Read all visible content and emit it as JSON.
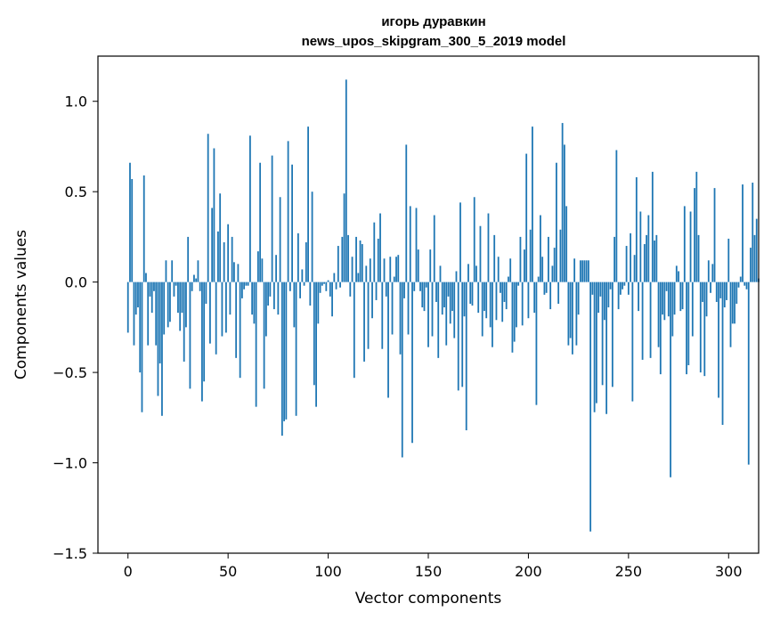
{
  "chart_data": {
    "type": "bar",
    "title": "игорь дуравкин",
    "subtitle": "news_upos_skipgram_300_5_2019 model",
    "xlabel": "Vector components",
    "ylabel": "Components values",
    "xlim": [
      -15,
      315
    ],
    "ylim": [
      -1.5,
      1.25
    ],
    "xticks": [
      0,
      50,
      100,
      150,
      200,
      250,
      300
    ],
    "xtick_labels": [
      "0",
      "50",
      "100",
      "150",
      "200",
      "250",
      "300"
    ],
    "yticks": [
      -1.5,
      -1.0,
      -0.5,
      0.0,
      0.5,
      1.0
    ],
    "ytick_labels": [
      "−1.5",
      "−1.0",
      "−0.5",
      "0.0",
      "0.5",
      "1.0"
    ],
    "bar_color": "#1f77b4",
    "grid": false,
    "values": [
      -0.28,
      0.66,
      0.57,
      -0.35,
      -0.18,
      -0.14,
      -0.5,
      -0.72,
      0.59,
      0.05,
      -0.35,
      -0.08,
      -0.17,
      -0.05,
      -0.35,
      -0.63,
      -0.45,
      -0.74,
      -0.29,
      0.12,
      -0.25,
      -0.22,
      0.12,
      -0.08,
      -0.02,
      -0.17,
      -0.27,
      -0.17,
      -0.44,
      -0.25,
      0.25,
      -0.59,
      -0.05,
      0.04,
      0.02,
      0.12,
      -0.05,
      -0.66,
      -0.55,
      -0.12,
      0.82,
      -0.34,
      0.41,
      0.74,
      -0.4,
      0.28,
      0.49,
      -0.3,
      0.22,
      -0.28,
      0.32,
      -0.18,
      0.25,
      0.11,
      -0.42,
      0.1,
      -0.53,
      -0.09,
      -0.04,
      -0.02,
      -0.02,
      0.81,
      -0.18,
      -0.23,
      -0.69,
      0.17,
      0.66,
      0.13,
      -0.59,
      -0.3,
      -0.13,
      -0.08,
      0.7,
      -0.15,
      0.15,
      -0.18,
      0.47,
      -0.85,
      -0.77,
      -0.76,
      0.78,
      -0.05,
      0.65,
      -0.25,
      -0.74,
      0.27,
      -0.09,
      0.07,
      -0.02,
      0.22,
      0.86,
      -0.13,
      0.5,
      -0.57,
      -0.69,
      -0.23,
      -0.06,
      -0.02,
      -0.01,
      -0.05,
      0.01,
      -0.08,
      -0.19,
      0.05,
      -0.04,
      0.2,
      -0.03,
      0.25,
      0.49,
      1.12,
      0.26,
      -0.08,
      0.14,
      -0.53,
      0.25,
      0.05,
      0.23,
      0.21,
      -0.44,
      0.09,
      -0.37,
      0.13,
      -0.2,
      0.33,
      -0.1,
      0.24,
      0.38,
      -0.37,
      0.13,
      -0.08,
      -0.64,
      0.14,
      -0.29,
      0.03,
      0.14,
      0.15,
      -0.4,
      -0.97,
      -0.09,
      0.76,
      -0.29,
      0.42,
      -0.89,
      -0.05,
      0.41,
      0.18,
      -0.05,
      -0.14,
      -0.16,
      -0.03,
      -0.36,
      0.18,
      -0.3,
      0.37,
      -0.11,
      -0.42,
      0.09,
      -0.18,
      -0.14,
      -0.35,
      -0.08,
      -0.23,
      -0.16,
      -0.31,
      0.06,
      -0.6,
      0.44,
      -0.58,
      -0.19,
      -0.82,
      0.1,
      -0.12,
      -0.13,
      0.47,
      0.09,
      -0.17,
      0.31,
      -0.3,
      -0.16,
      -0.2,
      0.38,
      -0.25,
      -0.36,
      0.26,
      -0.21,
      0.14,
      -0.06,
      -0.22,
      -0.11,
      -0.15,
      0.03,
      0.13,
      -0.39,
      -0.33,
      -0.25,
      -0.02,
      0.25,
      -0.24,
      0.18,
      0.71,
      -0.2,
      0.29,
      0.86,
      -0.17,
      -0.68,
      0.03,
      0.37,
      0.14,
      -0.07,
      -0.06,
      0.25,
      -0.15,
      0.09,
      0.19,
      0.66,
      -0.12,
      0.29,
      0.88,
      0.76,
      0.42,
      -0.35,
      -0.31,
      -0.4,
      0.13,
      -0.35,
      -0.18,
      0.12,
      0.12,
      0.12,
      0.12,
      0.12,
      -1.38,
      -0.07,
      -0.72,
      -0.67,
      -0.17,
      -0.08,
      -0.57,
      -0.21,
      -0.73,
      -0.14,
      -0.04,
      -0.58,
      0.25,
      0.73,
      -0.15,
      -0.07,
      -0.04,
      -0.02,
      0.2,
      -0.07,
      0.27,
      -0.66,
      0.15,
      0.58,
      -0.16,
      0.39,
      -0.43,
      0.21,
      0.26,
      0.37,
      -0.42,
      0.61,
      0.23,
      0.26,
      -0.36,
      -0.51,
      -0.18,
      -0.21,
      -0.05,
      -0.19,
      -1.08,
      -0.3,
      -0.18,
      0.09,
      0.06,
      -0.16,
      -0.15,
      0.42,
      -0.51,
      -0.46,
      0.39,
      -0.3,
      0.52,
      0.61,
      0.26,
      -0.5,
      -0.11,
      -0.52,
      -0.19,
      0.12,
      -0.06,
      0.1,
      0.52,
      -0.11,
      -0.64,
      -0.09,
      -0.79,
      -0.14,
      -0.1,
      0.24,
      -0.36,
      -0.23,
      -0.23,
      -0.12,
      -0.03,
      0.03,
      0.54,
      -0.02,
      -0.04,
      -1.01,
      0.19,
      0.55,
      0.26,
      0.35,
      0.02
    ]
  }
}
